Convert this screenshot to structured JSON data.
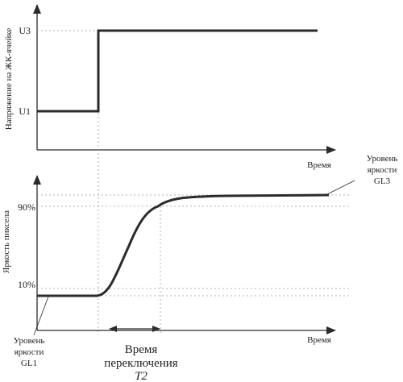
{
  "top_chart": {
    "ylabel": "Напряжение на ЖК-ячейке",
    "xlabel": "Время",
    "tick_high": "U3",
    "tick_low": "U1"
  },
  "bottom_chart": {
    "ylabel": "Яркость пиксела",
    "xlabel": "Время",
    "tick_90": "90%",
    "tick_10": "10%"
  },
  "annotations": {
    "gl3_line1": "Уровень",
    "gl3_line2": "яркости",
    "gl3_line3": "GL3",
    "gl1_line1": "Уровень",
    "gl1_line2": "яркости",
    "gl1_line3": "GL1",
    "t2_line1": "Время",
    "t2_line2": "переключения",
    "t2_line3": "T2"
  },
  "colors": {
    "curve": "#2b2b2b",
    "guide": "#9a9a9a"
  }
}
